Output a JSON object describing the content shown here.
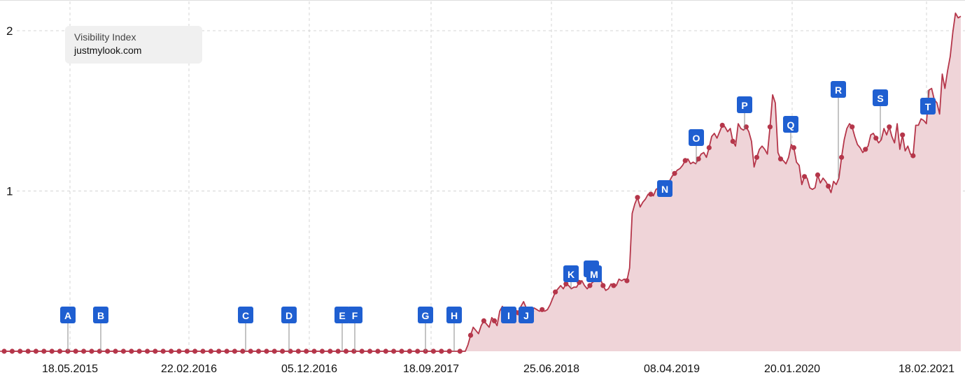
{
  "legend": {
    "title": "Visibility Index",
    "domain": "justmylook.com"
  },
  "colors": {
    "line": "#b5364a",
    "area": "#efd4d8",
    "marker_bg": "#1f5fd1",
    "marker_text": "#ffffff",
    "grid": "#d4d4d4",
    "axis_text": "#111111"
  },
  "chart_data": {
    "type": "area",
    "y_ticks": [
      "1",
      "2"
    ],
    "ylim": [
      0,
      2.1
    ],
    "x_tick_labels": [
      "18.05.2015",
      "22.02.2016",
      "05.12.2016",
      "18.09.2017",
      "25.06.2018",
      "08.04.2019",
      "20.01.2020",
      "18.02.2021"
    ],
    "grid": true,
    "series": [
      {
        "values": [
          0,
          0,
          0,
          0,
          0,
          0,
          0,
          0,
          0,
          0,
          0,
          0,
          0,
          0,
          0,
          0,
          0,
          0,
          0,
          0,
          0,
          0,
          0,
          0,
          0,
          0,
          0,
          0,
          0,
          0,
          0,
          0,
          0,
          0,
          0,
          0,
          0,
          0,
          0,
          0,
          0,
          0,
          0,
          0,
          0,
          0,
          0,
          0,
          0,
          0,
          0,
          0,
          0,
          0,
          0,
          0,
          0,
          0,
          0,
          0,
          0,
          0,
          0,
          0,
          0,
          0,
          0,
          0,
          0,
          0,
          0,
          0,
          0,
          0,
          0,
          0,
          0,
          0,
          0,
          0,
          0,
          0,
          0,
          0,
          0,
          0,
          0,
          0,
          0,
          0,
          0,
          0,
          0,
          0,
          0,
          0,
          0,
          0,
          0,
          0,
          0,
          0,
          0,
          0,
          0,
          0,
          0,
          0,
          0,
          0,
          0,
          0,
          0,
          0,
          0,
          0,
          0,
          0,
          0,
          0,
          0,
          0,
          0,
          0,
          0,
          0,
          0,
          0,
          0,
          0,
          0,
          0,
          0,
          0,
          0,
          0,
          0,
          0,
          0,
          0,
          0,
          0,
          0,
          0,
          0,
          0,
          0,
          0,
          0,
          0,
          0,
          0,
          0,
          0,
          0,
          0,
          0,
          0,
          0,
          0,
          0,
          0,
          0,
          0,
          0,
          0,
          0,
          0,
          0,
          0,
          0,
          0,
          0,
          0,
          0,
          0.04,
          0.1,
          0.15,
          0.13,
          0.11,
          0.16,
          0.19,
          0.17,
          0.15,
          0.21,
          0.19,
          0.16,
          0.25,
          0.28,
          0.23,
          0.19,
          0.23,
          0.27,
          0.26,
          0.24,
          0.28,
          0.31,
          0.27,
          0.22,
          0.25,
          0.27,
          0.26,
          0.25,
          0.26,
          0.25,
          0.26,
          0.29,
          0.33,
          0.37,
          0.39,
          0.41,
          0.39,
          0.42,
          0.41,
          0.39,
          0.4,
          0.4,
          0.43,
          0.44,
          0.41,
          0.39,
          0.41,
          0.43,
          0.44,
          0.44,
          0.45,
          0.41,
          0.38,
          0.39,
          0.42,
          0.41,
          0.41,
          0.45,
          0.44,
          0.45,
          0.44,
          0.52,
          0.86,
          0.92,
          0.96,
          0.9,
          0.93,
          0.95,
          0.98,
          0.98,
          0.97,
          1.01,
          1.02,
          0.99,
          1.02,
          1.04,
          1.06,
          1.09,
          1.11,
          1.13,
          1.14,
          1.16,
          1.19,
          1.2,
          1.17,
          1.18,
          1.17,
          1.2,
          1.23,
          1.24,
          1.21,
          1.27,
          1.34,
          1.36,
          1.33,
          1.37,
          1.41,
          1.4,
          1.37,
          1.39,
          1.31,
          1.28,
          1.42,
          1.39,
          1.38,
          1.4,
          1.37,
          1.31,
          1.15,
          1.21,
          1.26,
          1.28,
          1.26,
          1.23,
          1.4,
          1.6,
          1.55,
          1.24,
          1.2,
          1.19,
          1.17,
          1.21,
          1.29,
          1.27,
          1.18,
          1.16,
          1.04,
          1.09,
          1.08,
          1.02,
          1.01,
          1.02,
          1.1,
          1.05,
          1.08,
          1.06,
          1.03,
          0.99,
          1.06,
          1.04,
          1.08,
          1.21,
          1.32,
          1.39,
          1.42,
          1.4,
          1.34,
          1.29,
          1.27,
          1.24,
          1.26,
          1.28,
          1.35,
          1.36,
          1.33,
          1.3,
          1.32,
          1.39,
          1.35,
          1.4,
          1.34,
          1.3,
          1.42,
          1.26,
          1.35,
          1.25,
          1.28,
          1.23,
          1.22,
          1.41,
          1.41,
          1.45,
          1.44,
          1.42,
          1.63,
          1.64,
          1.57,
          1.55,
          1.48,
          1.73,
          1.64,
          1.75,
          1.84,
          1.99,
          2.11,
          2.08,
          2.09
        ]
      }
    ],
    "markers": [
      "A",
      "B",
      "C",
      "D",
      "E",
      "F",
      "G",
      "H",
      "I",
      "J",
      "K",
      "L",
      "M",
      "N",
      "O",
      "P",
      "Q",
      "R",
      "S",
      "T"
    ]
  }
}
